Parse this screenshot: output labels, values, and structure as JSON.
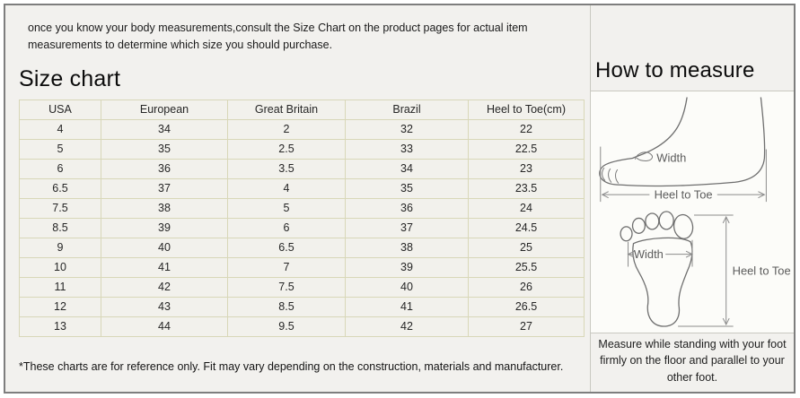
{
  "intro": "once you know your body measurements,consult the Size Chart on the product pages for actual item measurements to determine which size you should purchase.",
  "size_chart": {
    "title": "Size chart",
    "columns": [
      "USA",
      "European",
      "Great Britain",
      "Brazil",
      "Heel to Toe(cm)"
    ],
    "rows": [
      [
        "4",
        "34",
        "2",
        "32",
        "22"
      ],
      [
        "5",
        "35",
        "2.5",
        "33",
        "22.5"
      ],
      [
        "6",
        "36",
        "3.5",
        "34",
        "23"
      ],
      [
        "6.5",
        "37",
        "4",
        "35",
        "23.5"
      ],
      [
        "7.5",
        "38",
        "5",
        "36",
        "24"
      ],
      [
        "8.5",
        "39",
        "6",
        "37",
        "24.5"
      ],
      [
        "9",
        "40",
        "6.5",
        "38",
        "25"
      ],
      [
        "10",
        "41",
        "7",
        "39",
        "25.5"
      ],
      [
        "11",
        "42",
        "7.5",
        "40",
        "26"
      ],
      [
        "12",
        "43",
        "8.5",
        "41",
        "26.5"
      ],
      [
        "13",
        "44",
        "9.5",
        "42",
        "27"
      ]
    ],
    "footnote": "*These charts are for reference only. Fit may vary depending on the construction, materials and manufacturer."
  },
  "how_to_measure": {
    "title": "How to measure",
    "labels": {
      "width": "Width",
      "heel_to_toe": "Heel to Toe"
    },
    "note": "Measure while standing with your foot firmly on the floor and parallel to your other foot."
  },
  "colors": {
    "page_border": "#7e7e7e",
    "panel_bg": "#f2f1ee",
    "table_border": "#d8d7b8",
    "table_cell_bg": "#f2f1ec",
    "divider": "#c9c9c1",
    "diagram_bg": "#fcfcf9"
  }
}
